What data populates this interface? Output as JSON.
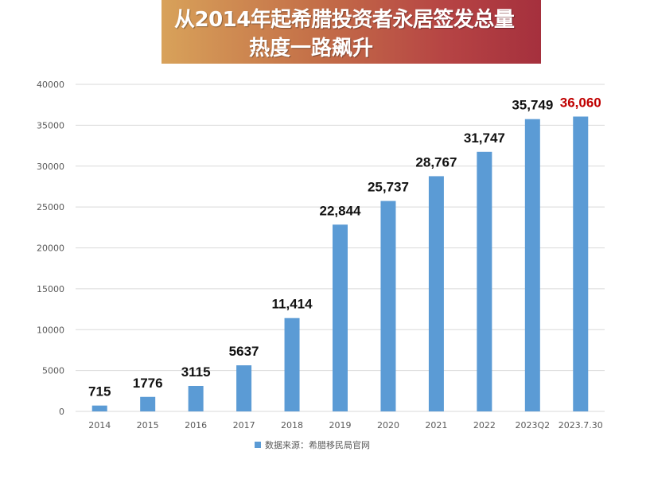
{
  "title": {
    "line1": "从2014年起希腊投资者永居签发总量",
    "line2": "热度一路飙升"
  },
  "colors": {
    "bar": "#5b9bd5",
    "highlight_label": "#c00000",
    "label": "#111111",
    "grid": "#d9d9d9",
    "tick": "#595959"
  },
  "chart_data": {
    "type": "bar",
    "categories": [
      "2014",
      "2015",
      "2016",
      "2017",
      "2018",
      "2019",
      "2020",
      "2021",
      "2022",
      "2023Q2",
      "2023.7.30"
    ],
    "series": [
      {
        "name": "数据来源：希腊移民局官网",
        "values": [
          715,
          1776,
          3115,
          5637,
          11414,
          22844,
          25737,
          28767,
          31747,
          35749,
          36060
        ]
      }
    ],
    "data_labels": [
      "715",
      "1776",
      "3115",
      "5637",
      "11,414",
      "22,844",
      "25,737",
      "28,767",
      "31,747",
      "35,749",
      "36,060"
    ],
    "highlight_index": 10,
    "ylim": [
      0,
      40000
    ],
    "yticks": [
      "0",
      "5000",
      "10000",
      "15000",
      "20000",
      "25000",
      "30000",
      "35000",
      "40000"
    ],
    "grid": true,
    "legend_position": "bottom"
  }
}
